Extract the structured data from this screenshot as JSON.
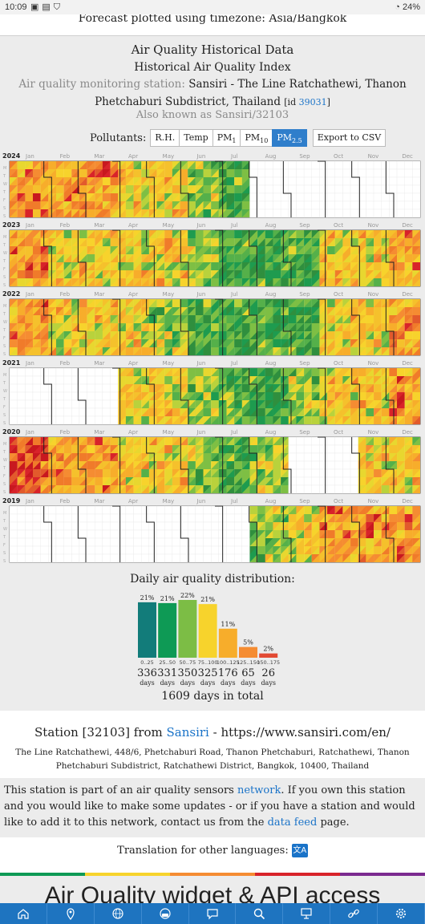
{
  "status_bar": {
    "time": "10:09",
    "battery": "24%"
  },
  "top_card": {
    "text": "Forecast plotted using timezone: Asia/Bangkok"
  },
  "header": {
    "title": "Air Quality Historical Data",
    "subtitle": "Historical Air Quality Index",
    "station_label": "Air quality monitoring station:",
    "station_name": "Sansiri - The Line Ratchathewi, Thanon Phetchaburi Subdistrict, Thailand",
    "id_prefix": "[id",
    "id_value": "39031",
    "id_suffix": "]",
    "aka": "Also known as Sansiri/32103"
  },
  "pollutants": {
    "label": "Pollutants:",
    "buttons": [
      {
        "label": "R.H.",
        "sub": ""
      },
      {
        "label": "Temp",
        "sub": ""
      },
      {
        "label": "PM",
        "sub": "1"
      },
      {
        "label": "PM",
        "sub": "10"
      },
      {
        "label": "PM",
        "sub": "2.5",
        "active": true
      }
    ],
    "export_label": "Export to CSV"
  },
  "calendar": {
    "months": [
      "Jan",
      "Feb",
      "Mar",
      "Apr",
      "May",
      "Jun",
      "Jul",
      "Aug",
      "Sep",
      "Oct",
      "Nov",
      "Dec"
    ],
    "weekdays": [
      "M",
      "T",
      "W",
      "T",
      "F",
      "S",
      "S"
    ],
    "years": [
      {
        "year": "2024",
        "levels": [
          4,
          4,
          4,
          3,
          3,
          2,
          1,
          0,
          0,
          0,
          0,
          0
        ]
      },
      {
        "year": "2023",
        "levels": [
          4,
          3,
          3,
          3,
          3,
          2,
          1,
          1,
          1,
          3,
          3,
          4
        ]
      },
      {
        "year": "2022",
        "levels": [
          4,
          3,
          3,
          3,
          2,
          1,
          1,
          1,
          1,
          3,
          3,
          4
        ]
      },
      {
        "year": "2021",
        "levels": [
          0,
          0,
          0,
          3,
          3,
          2,
          1,
          1,
          2,
          3,
          3,
          4
        ]
      },
      {
        "year": "2020",
        "levels": [
          5,
          4,
          4,
          3,
          3,
          2,
          1,
          2,
          0,
          0,
          3,
          3
        ]
      },
      {
        "year": "2019",
        "levels": [
          0,
          0,
          0,
          0,
          0,
          0,
          0,
          2,
          3,
          4,
          4,
          4
        ]
      }
    ]
  },
  "distribution": {
    "title": "Daily air quality distribution:",
    "bins": [
      {
        "range": "0..25",
        "percent": "21%",
        "days": "336",
        "color": "#127c7a"
      },
      {
        "range": "25..50",
        "percent": "21%",
        "days": "331",
        "color": "#0e9a55"
      },
      {
        "range": "50..75",
        "percent": "22%",
        "days": "350",
        "color": "#7cbd45"
      },
      {
        "range": "75..100",
        "percent": "21%",
        "days": "325",
        "color": "#f7d32c"
      },
      {
        "range": "100..125",
        "percent": "11%",
        "days": "176",
        "color": "#f7ad2b"
      },
      {
        "range": "125..150",
        "percent": "5%",
        "days": "65",
        "color": "#f58c32"
      },
      {
        "range": "150..175",
        "percent": "2%",
        "days": "26",
        "color": "#e24a33"
      }
    ],
    "days_unit": "days",
    "total": "1609 days in total"
  },
  "station_info": {
    "title_prefix": "Station [32103] from",
    "title_link": "Sansiri",
    "title_suffix": "- https://www.sansiri.com/en/",
    "address": "The Line Ratchathewi, 448/6, Phetchaburi Road, Thanon Phetchaburi, Ratchathewi, Thanon Phetchaburi Subdistrict, Ratchathewi District, Bangkok, 10400, Thailand"
  },
  "network_note": {
    "part1": "This station is part of an air quality sensors",
    "link1": "network",
    "part2": ". If you own this station and you would like to make some updates - or if you have a station and would like to add it to this network, contact us from the",
    "link2": "data feed",
    "part3": "page."
  },
  "translation": {
    "label": "Translation for other languages:"
  },
  "widget_heading": "Air Quality widget & API access",
  "nav": [
    "home-icon",
    "location-pin-icon",
    "globe-icon",
    "face-mask-icon",
    "chat-icon",
    "search-icon",
    "presentation-icon",
    "link-icon",
    "gear-icon"
  ],
  "colors": {
    "good": "#127c7a",
    "moderate": "#0e9a55",
    "fair": "#7cbd45",
    "sensitive": "#f7d32c",
    "unhealthy": "#f58c32",
    "very_unhealthy": "#d8232a",
    "link": "#1a73c8",
    "nav": "#1e74c0"
  }
}
